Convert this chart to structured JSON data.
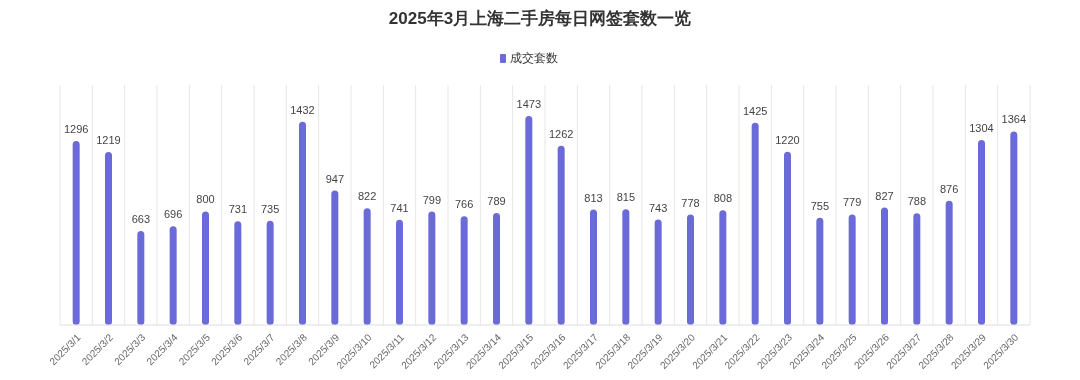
{
  "chart_data": {
    "type": "bar",
    "title": "2025年3月上海二手房每日网签套数一览",
    "categories": [
      "2025/3/1",
      "2025/3/2",
      "2025/3/3",
      "2025/3/4",
      "2025/3/5",
      "2025/3/6",
      "2025/3/7",
      "2025/3/8",
      "2025/3/9",
      "2025/3/10",
      "2025/3/11",
      "2025/3/12",
      "2025/3/13",
      "2025/3/14",
      "2025/3/15",
      "2025/3/16",
      "2025/3/17",
      "2025/3/18",
      "2025/3/19",
      "2025/3/20",
      "2025/3/21",
      "2025/3/22",
      "2025/3/23",
      "2025/3/24",
      "2025/3/25",
      "2025/3/26",
      "2025/3/27",
      "2025/3/28",
      "2025/3/29",
      "2025/3/30"
    ],
    "series": [
      {
        "name": "成交套数",
        "color": "#6a6ad8",
        "values": [
          1296,
          1219,
          663,
          696,
          800,
          731,
          735,
          1432,
          947,
          822,
          741,
          799,
          766,
          789,
          1473,
          1262,
          813,
          815,
          743,
          778,
          808,
          1425,
          1220,
          755,
          779,
          827,
          788,
          876,
          1304,
          1364
        ]
      }
    ],
    "data_labels": true,
    "legend": "top",
    "grid": "x"
  }
}
